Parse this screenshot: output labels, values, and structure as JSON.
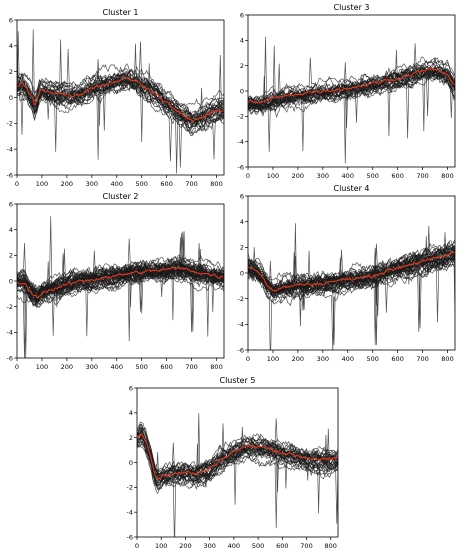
{
  "chart_data": [
    {
      "type": "line",
      "title": "Cluster 1",
      "xlim": [
        0,
        830
      ],
      "ylim": [
        -6,
        6
      ],
      "xticks": [
        0,
        100,
        200,
        300,
        400,
        500,
        600,
        700,
        800
      ],
      "yticks": [
        -6,
        -4,
        -2,
        0,
        2,
        4,
        6
      ],
      "series": [
        {
          "role": "member_profiles",
          "color": "#1a1a1a",
          "count": 30,
          "x": [
            0,
            20,
            40,
            60,
            70,
            80,
            90,
            100,
            150,
            200,
            250,
            300,
            350,
            400,
            450,
            500,
            550,
            600,
            650,
            700,
            750,
            800,
            830
          ],
          "values": [
            0.8,
            1.1,
            0.6,
            0.0,
            -0.6,
            -0.3,
            0.4,
            0.6,
            0.4,
            0.2,
            0.2,
            0.8,
            1.0,
            1.3,
            1.5,
            1.0,
            0.4,
            -0.4,
            -1.2,
            -1.8,
            -1.5,
            -1.0,
            -0.9
          ],
          "spread": 1.1
        },
        {
          "role": "centroid",
          "color": "#e03a1e",
          "x": [
            0,
            20,
            40,
            60,
            70,
            80,
            90,
            100,
            150,
            200,
            250,
            300,
            350,
            400,
            450,
            500,
            550,
            600,
            650,
            700,
            750,
            800,
            830
          ],
          "values": [
            0.8,
            1.1,
            0.6,
            0.0,
            -0.6,
            -0.3,
            0.4,
            0.6,
            0.4,
            0.2,
            0.2,
            0.8,
            1.0,
            1.3,
            1.5,
            1.0,
            0.4,
            -0.4,
            -1.2,
            -1.8,
            -1.5,
            -1.0,
            -0.9
          ]
        }
      ]
    },
    {
      "type": "line",
      "title": "Cluster 3",
      "xlim": [
        0,
        830
      ],
      "ylim": [
        -6,
        6
      ],
      "xticks": [
        0,
        100,
        200,
        300,
        400,
        500,
        600,
        700,
        800
      ],
      "yticks": [
        -6,
        -4,
        -2,
        0,
        2,
        4,
        6
      ],
      "series": [
        {
          "role": "member_profiles",
          "color": "#1a1a1a",
          "count": 30,
          "x": [
            0,
            50,
            100,
            150,
            200,
            250,
            300,
            350,
            400,
            450,
            500,
            550,
            600,
            650,
            700,
            750,
            800,
            830
          ],
          "values": [
            -0.9,
            -0.9,
            -0.6,
            -0.4,
            -0.2,
            -0.1,
            0.0,
            0.1,
            0.2,
            0.4,
            0.6,
            0.8,
            1.0,
            1.3,
            1.6,
            1.7,
            1.3,
            0.3
          ],
          "spread": 0.8
        },
        {
          "role": "centroid",
          "color": "#e03a1e",
          "x": [
            0,
            50,
            100,
            150,
            200,
            250,
            300,
            350,
            400,
            450,
            500,
            550,
            600,
            650,
            700,
            750,
            800,
            830
          ],
          "values": [
            -0.9,
            -0.9,
            -0.6,
            -0.4,
            -0.2,
            -0.1,
            0.0,
            0.1,
            0.2,
            0.4,
            0.6,
            0.8,
            1.0,
            1.3,
            1.6,
            1.7,
            1.3,
            0.3
          ]
        }
      ]
    },
    {
      "type": "line",
      "title": "Cluster 2",
      "xlim": [
        0,
        830
      ],
      "ylim": [
        -6,
        6
      ],
      "xticks": [
        0,
        100,
        200,
        300,
        400,
        500,
        600,
        700,
        800
      ],
      "yticks": [
        -6,
        -4,
        -2,
        0,
        2,
        4,
        6
      ],
      "series": [
        {
          "role": "member_profiles",
          "color": "#1a1a1a",
          "count": 45,
          "x": [
            0,
            30,
            60,
            80,
            100,
            150,
            200,
            250,
            300,
            350,
            400,
            450,
            500,
            550,
            600,
            650,
            700,
            750,
            800,
            830
          ],
          "values": [
            -0.1,
            -0.2,
            -1.0,
            -1.3,
            -0.9,
            -0.6,
            -0.3,
            0.0,
            0.1,
            0.3,
            0.4,
            0.6,
            0.7,
            0.8,
            0.9,
            1.0,
            0.8,
            0.6,
            0.4,
            0.3
          ],
          "spread": 1.0
        },
        {
          "role": "centroid",
          "color": "#e03a1e",
          "x": [
            0,
            30,
            60,
            80,
            100,
            150,
            200,
            250,
            300,
            350,
            400,
            450,
            500,
            550,
            600,
            650,
            700,
            750,
            800,
            830
          ],
          "values": [
            -0.1,
            -0.2,
            -1.0,
            -1.3,
            -0.9,
            -0.6,
            -0.3,
            0.0,
            0.1,
            0.3,
            0.4,
            0.6,
            0.7,
            0.8,
            0.9,
            1.0,
            0.8,
            0.6,
            0.4,
            0.3
          ]
        }
      ]
    },
    {
      "type": "line",
      "title": "Cluster 4",
      "xlim": [
        0,
        830
      ],
      "ylim": [
        -6,
        6
      ],
      "xticks": [
        0,
        100,
        200,
        300,
        400,
        500,
        600,
        700,
        800
      ],
      "yticks": [
        -6,
        -4,
        -2,
        0,
        2,
        4,
        6
      ],
      "series": [
        {
          "role": "member_profiles",
          "color": "#1a1a1a",
          "count": 40,
          "x": [
            0,
            30,
            60,
            80,
            100,
            150,
            200,
            250,
            300,
            350,
            400,
            450,
            500,
            550,
            600,
            650,
            700,
            750,
            800,
            830
          ],
          "values": [
            0.5,
            0.3,
            -0.3,
            -1.0,
            -1.4,
            -1.1,
            -0.9,
            -0.9,
            -0.8,
            -0.6,
            -0.5,
            -0.4,
            -0.2,
            0.1,
            0.4,
            0.7,
            0.9,
            1.1,
            1.4,
            1.6
          ],
          "spread": 1.0
        },
        {
          "role": "centroid",
          "color": "#e03a1e",
          "x": [
            0,
            30,
            60,
            80,
            100,
            150,
            200,
            250,
            300,
            350,
            400,
            450,
            500,
            550,
            600,
            650,
            700,
            750,
            800,
            830
          ],
          "values": [
            0.5,
            0.3,
            -0.3,
            -1.0,
            -1.4,
            -1.1,
            -0.9,
            -0.9,
            -0.8,
            -0.6,
            -0.5,
            -0.4,
            -0.2,
            0.1,
            0.4,
            0.7,
            0.9,
            1.1,
            1.4,
            1.6
          ]
        }
      ]
    },
    {
      "type": "line",
      "title": "Cluster 5",
      "xlim": [
        0,
        830
      ],
      "ylim": [
        -6,
        6
      ],
      "xticks": [
        0,
        100,
        200,
        300,
        400,
        500,
        600,
        700,
        800
      ],
      "yticks": [
        -6,
        -4,
        -2,
        0,
        2,
        4,
        6
      ],
      "series": [
        {
          "role": "member_profiles",
          "color": "#1a1a1a",
          "count": 30,
          "x": [
            0,
            20,
            40,
            60,
            75,
            90,
            110,
            150,
            200,
            250,
            300,
            350,
            400,
            450,
            500,
            550,
            600,
            650,
            700,
            750,
            800,
            830
          ],
          "values": [
            2.0,
            2.3,
            1.5,
            0.3,
            -1.0,
            -1.3,
            -1.0,
            -0.9,
            -0.8,
            -0.9,
            -0.5,
            0.3,
            0.9,
            1.3,
            1.3,
            1.1,
            0.8,
            0.6,
            0.4,
            0.3,
            0.2,
            0.3
          ],
          "spread": 1.0
        },
        {
          "role": "centroid",
          "color": "#e03a1e",
          "x": [
            0,
            20,
            40,
            60,
            75,
            90,
            110,
            150,
            200,
            250,
            300,
            350,
            400,
            450,
            500,
            550,
            600,
            650,
            700,
            750,
            800,
            830
          ],
          "values": [
            2.0,
            2.3,
            1.5,
            0.3,
            -1.0,
            -1.3,
            -1.0,
            -0.9,
            -0.8,
            -0.9,
            -0.5,
            0.3,
            0.9,
            1.3,
            1.3,
            1.1,
            0.8,
            0.6,
            0.4,
            0.3,
            0.2,
            0.3
          ]
        }
      ]
    }
  ]
}
